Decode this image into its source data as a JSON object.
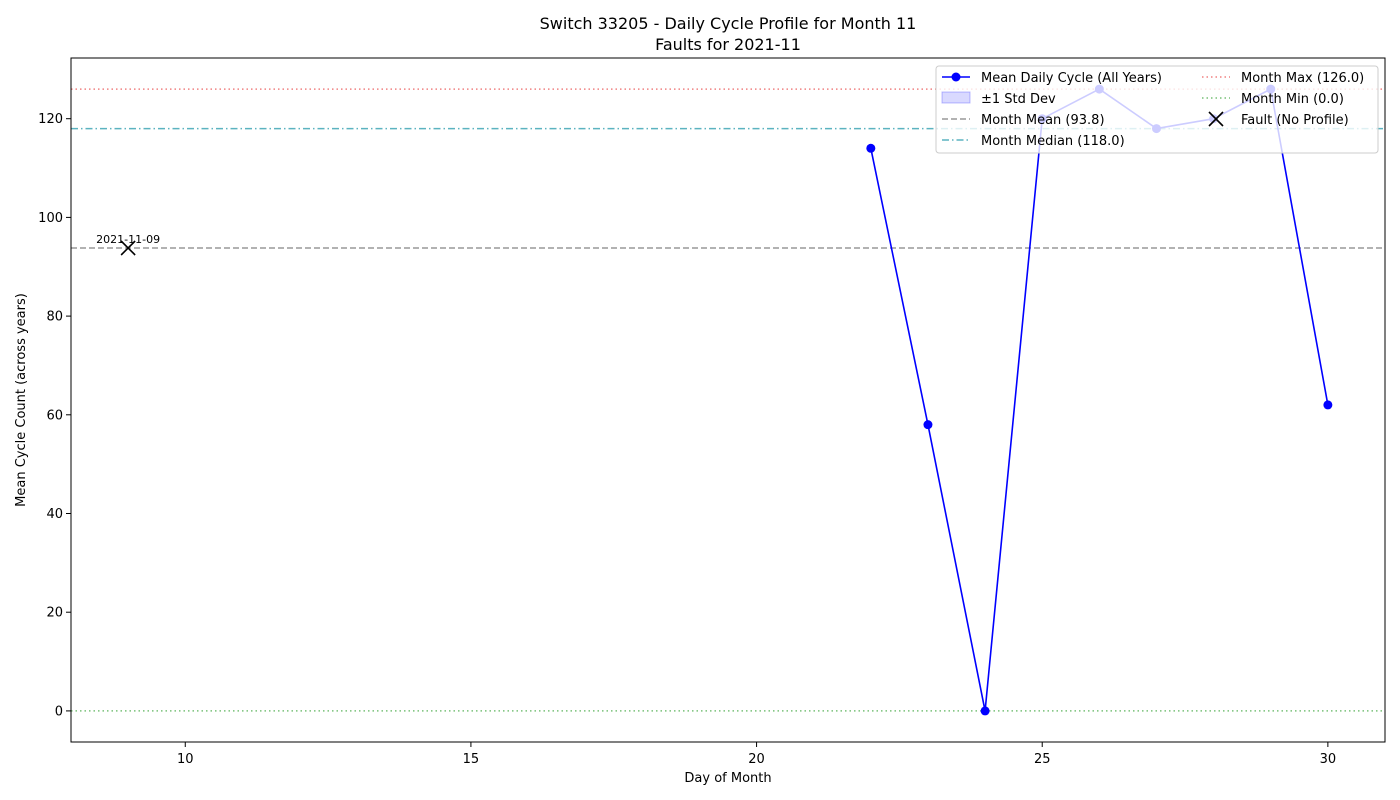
{
  "chart_data": {
    "type": "line",
    "title": "Switch 33205 - Daily Cycle Profile for Month 11",
    "subtitle": "Faults for 2021-11",
    "xlabel": "Day of Month",
    "ylabel": "Mean Cycle Count (across years)",
    "xlim": [
      8,
      31
    ],
    "ylim": [
      -6.3,
      132.3
    ],
    "xticks": [
      10,
      15,
      20,
      25,
      30
    ],
    "yticks": [
      0,
      20,
      40,
      60,
      80,
      100,
      120
    ],
    "grid": false,
    "legend_position": "top-right",
    "series": [
      {
        "name": "Mean Daily Cycle (All Years)",
        "color": "#0000ff",
        "x": [
          22,
          23,
          24,
          25,
          26,
          27,
          28,
          29,
          30
        ],
        "y": [
          114,
          58,
          0,
          120,
          126,
          118,
          120,
          126,
          62
        ]
      }
    ],
    "std_band_label": "±1 Std Dev",
    "reference_lines": [
      {
        "name": "Month Mean (93.8)",
        "value": 93.8,
        "color": "#999999",
        "style": "dashed"
      },
      {
        "name": "Month Median (118.0)",
        "value": 118.0,
        "color": "#5bb3c0",
        "style": "dashdot"
      },
      {
        "name": "Month Max (126.0)",
        "value": 126.0,
        "color": "#f08080",
        "style": "dotted"
      },
      {
        "name": "Month Min (0.0)",
        "value": 0.0,
        "color": "#77c077",
        "style": "dotted"
      }
    ],
    "faults": [
      {
        "name": "Fault (No Profile)",
        "x": 9,
        "y": 93.8,
        "label": "2021-11-09"
      }
    ]
  }
}
